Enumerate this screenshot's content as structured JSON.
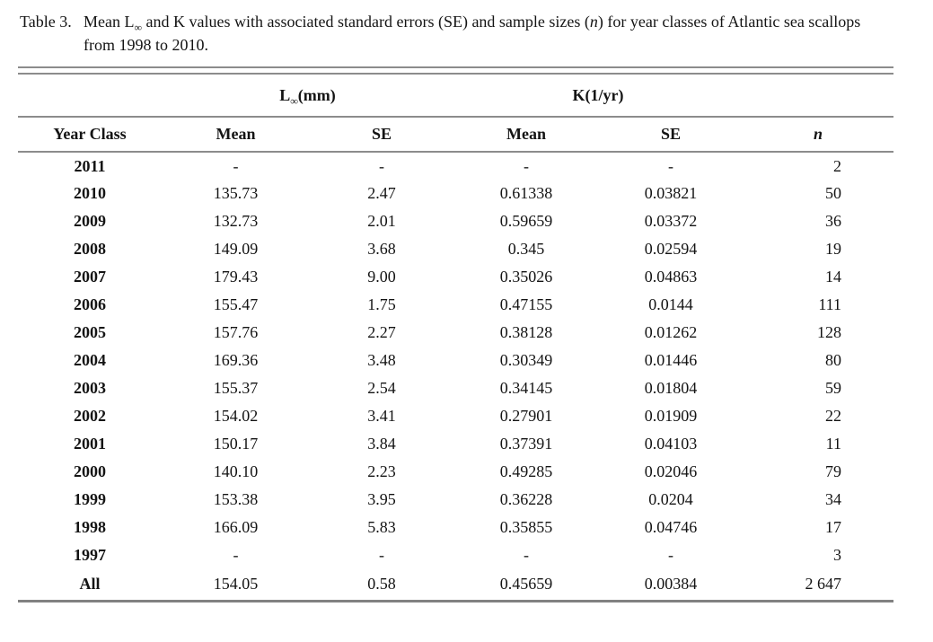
{
  "caption": {
    "label": "Table 3.",
    "line1_pre": "Mean L",
    "line1_sub": "∞",
    "line1_mid": " and K values with associated standard errors (SE) and sample sizes (",
    "line1_n": "n",
    "line1_end": ") for year classes of Atlantic sea scallops",
    "line2": "from 1998 to 2010."
  },
  "table": {
    "group_headers": {
      "linf_pre": "L",
      "linf_sub": "∞",
      "linf_post": "(mm)",
      "k": "K(1/yr)"
    },
    "column_headers": {
      "year": "Year Class",
      "mean1": "Mean",
      "se1": "SE",
      "mean2": "Mean",
      "se2": "SE",
      "n": "n"
    },
    "rows": [
      {
        "year": "2011",
        "l_mean": "-",
        "l_se": "-",
        "k_mean": "-",
        "k_se": "-",
        "n": "2"
      },
      {
        "year": "2010",
        "l_mean": "135.73",
        "l_se": "2.47",
        "k_mean": "0.61338",
        "k_se": "0.03821",
        "n": "50"
      },
      {
        "year": "2009",
        "l_mean": "132.73",
        "l_se": "2.01",
        "k_mean": "0.59659",
        "k_se": "0.03372",
        "n": "36"
      },
      {
        "year": "2008",
        "l_mean": "149.09",
        "l_se": "3.68",
        "k_mean": "0.345",
        "k_se": "0.02594",
        "n": "19"
      },
      {
        "year": "2007",
        "l_mean": "179.43",
        "l_se": "9.00",
        "k_mean": "0.35026",
        "k_se": "0.04863",
        "n": "14"
      },
      {
        "year": "2006",
        "l_mean": "155.47",
        "l_se": "1.75",
        "k_mean": "0.47155",
        "k_se": "0.0144",
        "n": "111"
      },
      {
        "year": "2005",
        "l_mean": "157.76",
        "l_se": "2.27",
        "k_mean": "0.38128",
        "k_se": "0.01262",
        "n": "128"
      },
      {
        "year": "2004",
        "l_mean": "169.36",
        "l_se": "3.48",
        "k_mean": "0.30349",
        "k_se": "0.01446",
        "n": "80"
      },
      {
        "year": "2003",
        "l_mean": "155.37",
        "l_se": "2.54",
        "k_mean": "0.34145",
        "k_se": "0.01804",
        "n": "59"
      },
      {
        "year": "2002",
        "l_mean": "154.02",
        "l_se": "3.41",
        "k_mean": "0.27901",
        "k_se": "0.01909",
        "n": "22"
      },
      {
        "year": "2001",
        "l_mean": "150.17",
        "l_se": "3.84",
        "k_mean": "0.37391",
        "k_se": "0.04103",
        "n": "11"
      },
      {
        "year": "2000",
        "l_mean": "140.10",
        "l_se": "2.23",
        "k_mean": "0.49285",
        "k_se": "0.02046",
        "n": "79"
      },
      {
        "year": "1999",
        "l_mean": "153.38",
        "l_se": "3.95",
        "k_mean": "0.36228",
        "k_se": "0.0204",
        "n": "34"
      },
      {
        "year": "1998",
        "l_mean": "166.09",
        "l_se": "5.83",
        "k_mean": "0.35855",
        "k_se": "0.04746",
        "n": "17"
      },
      {
        "year": "1997",
        "l_mean": "-",
        "l_se": "-",
        "k_mean": "-",
        "k_se": "-",
        "n": "3"
      },
      {
        "year": "All",
        "l_mean": "154.05",
        "l_se": "0.58",
        "k_mean": "0.45659",
        "k_se": "0.00384",
        "n": "2 647"
      }
    ]
  }
}
